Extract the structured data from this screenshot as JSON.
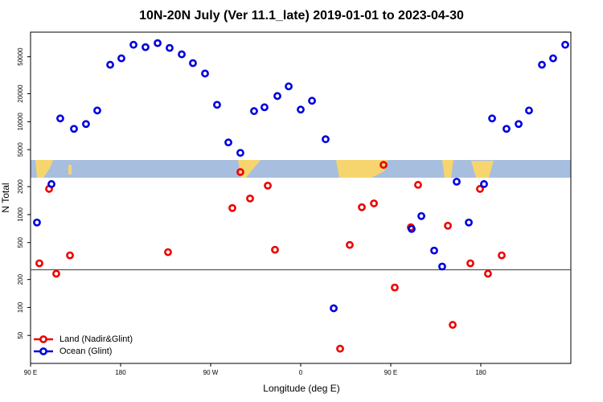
{
  "chart_data": {
    "type": "scatter",
    "title": "10N-20N July (Ver 11.1_late)   2019-01-01 to 2023-04-30",
    "x_label": "Longitude (deg E)",
    "y_label": "N Total",
    "log_y": true,
    "legend": "bottom-left",
    "hline": 255,
    "xlim": [
      90,
      630
    ],
    "ylim": [
      25,
      92000
    ],
    "xticks": [
      {
        "value": 90,
        "label": "90 E"
      },
      180,
      {
        "value": 270,
        "label": "90 W"
      },
      {
        "value": 360,
        "label": "0"
      },
      {
        "value": 450,
        "label": "90 E"
      },
      {
        "value": 540,
        "label": "180"
      }
    ],
    "yticks": [
      50,
      100,
      200,
      500,
      1000,
      2000,
      5000,
      10000,
      20000,
      50000
    ],
    "series": [
      {
        "name": "Land (Nadir&Glint)",
        "color": "#ee0000",
        "x": [
          98.8,
          108.5,
          115.7,
          129.4,
          227.4,
          291.7,
          299.7,
          309.4,
          327.1,
          334.3,
          399.4,
          409.0,
          421.1,
          433.2,
          442.8,
          454.0,
          470.1,
          477.3,
          507.1,
          511.9,
          529.6,
          539.2,
          547.2,
          560.9
        ],
        "values": [
          299,
          1890,
          231,
          364,
          394,
          1176,
          2870,
          1490,
          2050,
          418,
          36,
          471,
          1200,
          1320,
          3430,
          164,
          730,
          2090,
          759,
          65,
          299,
          1890,
          231,
          364
        ]
      },
      {
        "name": "Ocean (Glint)",
        "color": "#0000dd",
        "x": [
          96.4,
          110.9,
          119.7,
          133.4,
          145.4,
          156.7,
          169.6,
          180.8,
          192.9,
          204.9,
          217.0,
          229.0,
          241.1,
          252.3,
          264.4,
          276.4,
          287.7,
          299.7,
          313.4,
          323.8,
          336.7,
          348.0,
          360.0,
          371.3,
          384.9,
          393.0,
          470.9,
          480.6,
          493.4,
          501.4,
          515.9,
          528.0,
          543.2,
          551.3,
          565.7,
          577.8,
          588.2,
          601.1,
          612.3,
          624.4
        ],
        "values": [
          822,
          2130,
          10840,
          8380,
          9440,
          13200,
          41000,
          48100,
          67300,
          63400,
          70100,
          62200,
          53100,
          42700,
          33000,
          15200,
          5980,
          4620,
          13000,
          14300,
          18900,
          24000,
          13500,
          16800,
          6470,
          98,
          701,
          964,
          410,
          276,
          2260,
          822,
          2130,
          10840,
          8380,
          9440,
          13200,
          41000,
          48100,
          67300
        ]
      }
    ]
  }
}
